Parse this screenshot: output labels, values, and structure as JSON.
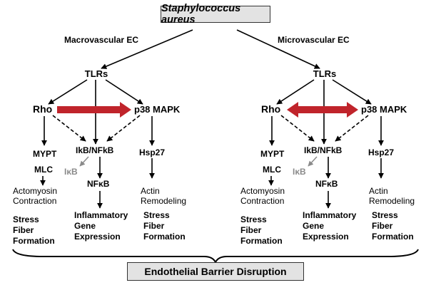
{
  "top_box": "Staphylococcus aureus",
  "bottom_box": "Endothelial Barrier Disruption",
  "left": {
    "branch_label": "Macrovascular EC",
    "tlrs": "TLRs",
    "rho": "Rho",
    "p38": "p38 MAPK",
    "mypt": "MYPT",
    "mlc": "MLC",
    "actomyosin": [
      "Actomyosin",
      "Contraction"
    ],
    "stress_fiber_1": [
      "Stress",
      "Fiber",
      "Formation"
    ],
    "ikb_nfkb": "IkB/NFkB",
    "ikb": "IκB",
    "nfkb": "NFκB",
    "inflammatory": [
      "Inflammatory",
      "Gene",
      "Expression"
    ],
    "hsp27": "Hsp27",
    "actin": [
      "Actin",
      "Remodeling"
    ],
    "stress_fiber_2": [
      "Stress",
      "Fiber",
      "Formation"
    ]
  },
  "right": {
    "branch_label": "Microvascular EC",
    "tlrs": "TLRs",
    "rho": "Rho",
    "p38": "p38 MAPK",
    "mypt": "MYPT",
    "mlc": "MLC",
    "actomyosin": [
      "Actomyosin",
      "Contraction"
    ],
    "stress_fiber_1": [
      "Stress",
      "Fiber",
      "Formation"
    ],
    "ikb_nfkb": "IkB/NFkB",
    "ikb": "IκB",
    "nfkb": "NFκB",
    "inflammatory": [
      "Inflammatory",
      "Gene",
      "Expression"
    ],
    "hsp27": "Hsp27",
    "actin": [
      "Actin",
      "Remodeling"
    ],
    "stress_fiber_2": [
      "Stress",
      "Fiber",
      "Formation"
    ]
  },
  "colors": {
    "interaction_arrow": "#c0242b",
    "box_fill": "#e3e3e3",
    "inactive_text": "#8a8a8a"
  }
}
